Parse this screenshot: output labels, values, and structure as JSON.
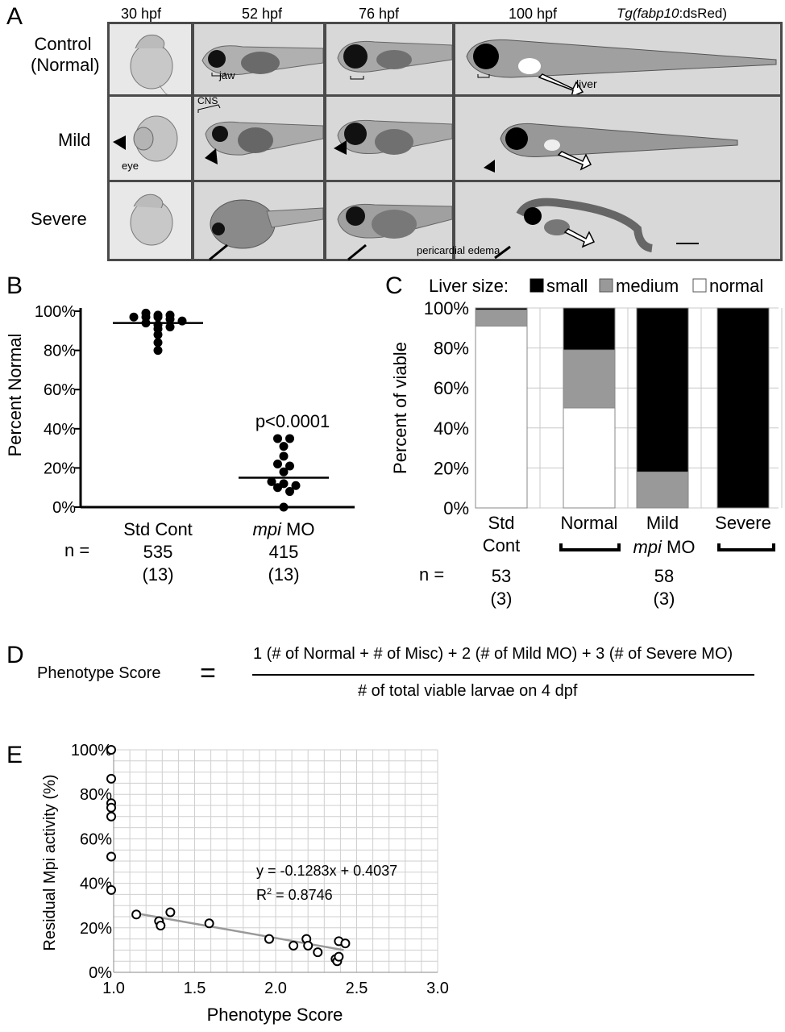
{
  "panelA": {
    "letter": "A",
    "stages": [
      "30 hpf",
      "52 hpf",
      "76 hpf",
      "100 hpf"
    ],
    "transgene_italic": "Tg(fabp10",
    "transgene_rest": ":dsRed)",
    "rows": [
      "Control\n(Normal)",
      "Mild",
      "Severe"
    ],
    "row_control_1": "Control",
    "row_control_2": "(Normal)",
    "row_mild": "Mild",
    "row_severe": "Severe",
    "annotations": {
      "jaw": "jaw",
      "liver": "liver",
      "cns": "CNS",
      "eye": "eye",
      "pericardial_edema": "pericardial edema"
    }
  },
  "panelB": {
    "letter": "B",
    "chart_data": {
      "type": "scatter",
      "ylabel": "Percent Normal",
      "yticks": [
        "100%",
        "80%",
        "60%",
        "40%",
        "20%",
        "0%"
      ],
      "ylim": [
        0,
        100
      ],
      "categories": [
        "Std Cont",
        "mpi MO"
      ],
      "category_mpi_italic": "mpi",
      "category_mpi_rest": " MO",
      "pvalue": "p<0.0001",
      "n_label": "n =",
      "n_values": [
        "535",
        "415"
      ],
      "n_groups": [
        "(13)",
        "(13)"
      ],
      "std_cont_points": [
        99,
        98,
        98,
        97,
        97,
        97,
        96,
        95,
        94,
        93,
        92,
        91,
        88,
        84,
        80
      ],
      "std_cont_mean": 94,
      "mpi_points": [
        35,
        35,
        31,
        26,
        22,
        21,
        18,
        13,
        12,
        11,
        10,
        8,
        0
      ],
      "mpi_mean": 15
    }
  },
  "panelC": {
    "letter": "C",
    "chart_data": {
      "type": "bar",
      "legend_title": "Liver size:",
      "legend": [
        "small",
        "medium",
        "normal"
      ],
      "colors": {
        "small": "#000000",
        "medium": "#999999",
        "normal": "#ffffff"
      },
      "ylabel": "Percent of viable",
      "yticks": [
        "100%",
        "80%",
        "60%",
        "40%",
        "20%",
        "0%"
      ],
      "ylim": [
        0,
        100
      ],
      "categories": [
        "Std\nCont",
        "Normal",
        "Mild",
        "Severe"
      ],
      "cat_std_1": "Std",
      "cat_std_2": "Cont",
      "cat_normal": "Normal",
      "cat_mild": "Mild",
      "cat_severe": "Severe",
      "group_mpi_italic": "mpi",
      "group_mpi_rest": " MO",
      "series": [
        {
          "name": "normal",
          "values": [
            91,
            50,
            0,
            0
          ]
        },
        {
          "name": "medium",
          "values": [
            8,
            29,
            18,
            0
          ]
        },
        {
          "name": "small",
          "values": [
            1,
            21,
            82,
            100
          ]
        }
      ],
      "n_label": "n =",
      "n_values": [
        "53",
        "58"
      ],
      "n_groups": [
        "(3)",
        "(3)"
      ]
    }
  },
  "panelD": {
    "letter": "D",
    "lhs": "Phenotype Score",
    "equals": "=",
    "numerator": "1 (# of Normal + # of Misc) + 2 (# of Mild MO) + 3 (# of Severe MO)",
    "denominator": "# of total viable larvae on 4 dpf"
  },
  "panelE": {
    "letter": "E",
    "chart_data": {
      "type": "scatter",
      "xlabel": "Phenotype Score",
      "ylabel": "Residual Mpi activity (%)",
      "xticks": [
        "1.0",
        "1.5",
        "2.0",
        "2.5",
        "3.0"
      ],
      "yticks": [
        "100%",
        "80%",
        "60%",
        "40%",
        "20%",
        "0%"
      ],
      "xlim": [
        1.0,
        3.0
      ],
      "ylim": [
        0,
        100
      ],
      "equation": "y = -0.1283x + 0.4037",
      "r2_prefix": "R",
      "r2_sup": "2",
      "r2_rest": " = 0.8746",
      "points": [
        {
          "x": 1.0,
          "y": 100
        },
        {
          "x": 1.0,
          "y": 87
        },
        {
          "x": 1.0,
          "y": 76
        },
        {
          "x": 1.0,
          "y": 74
        },
        {
          "x": 1.0,
          "y": 70
        },
        {
          "x": 1.0,
          "y": 52
        },
        {
          "x": 1.0,
          "y": 37
        },
        {
          "x": 1.14,
          "y": 26
        },
        {
          "x": 1.28,
          "y": 23
        },
        {
          "x": 1.29,
          "y": 21
        },
        {
          "x": 1.35,
          "y": 27
        },
        {
          "x": 1.59,
          "y": 22
        },
        {
          "x": 1.96,
          "y": 15
        },
        {
          "x": 2.11,
          "y": 12
        },
        {
          "x": 2.19,
          "y": 15
        },
        {
          "x": 2.2,
          "y": 12
        },
        {
          "x": 2.26,
          "y": 9
        },
        {
          "x": 2.37,
          "y": 6
        },
        {
          "x": 2.38,
          "y": 5
        },
        {
          "x": 2.39,
          "y": 7
        },
        {
          "x": 2.39,
          "y": 14
        },
        {
          "x": 2.43,
          "y": 13
        }
      ],
      "trendline": {
        "x0": 1.14,
        "y0": 26.5,
        "x1": 2.42,
        "y1": 10
      }
    }
  }
}
